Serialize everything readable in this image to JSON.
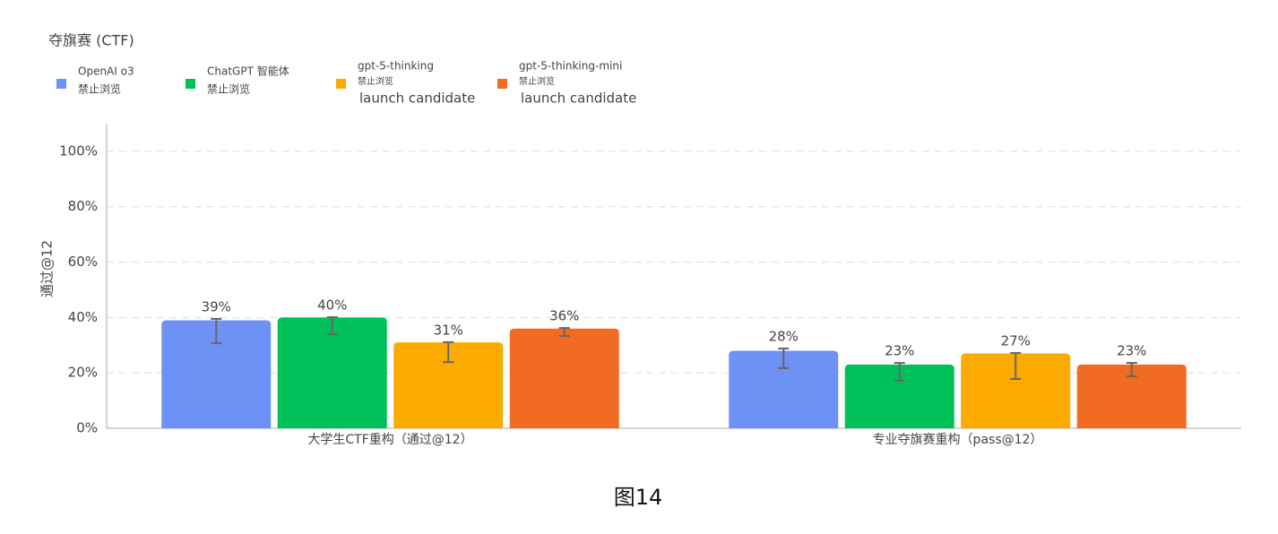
{
  "chart_data": {
    "type": "bar",
    "title": "夺旗赛 (CTF)",
    "caption": "图14",
    "y_label": "通过@12",
    "categories": [
      "大学生CTF重构（通过@12）",
      "专业夺旗赛重构（pass@12）"
    ],
    "series": [
      {
        "name": "OpenAI o3",
        "sublabels": [
          "禁止浏览"
        ],
        "color": "#6e91f5",
        "values": [
          39,
          28
        ],
        "value_labels": [
          "39%",
          "28%"
        ],
        "err_low": [
          30.7,
          21.7
        ],
        "err_high": [
          39.5,
          28.8
        ]
      },
      {
        "name": "ChatGPT 智能体",
        "sublabels": [
          "禁止浏览"
        ],
        "color": "#00c05a",
        "values": [
          40,
          23
        ],
        "value_labels": [
          "40%",
          "23%"
        ],
        "err_low": [
          34.0,
          17.2
        ],
        "err_high": [
          40.1,
          23.6
        ]
      },
      {
        "name": "gpt-5-thinking",
        "sublabels": [
          "禁止浏览",
          "launch candidate"
        ],
        "color": "#fbab00",
        "values": [
          31,
          27
        ],
        "value_labels": [
          "31%",
          "27%"
        ],
        "err_low": [
          23.9,
          17.8
        ],
        "err_high": [
          31.1,
          27.2
        ]
      },
      {
        "name": "gpt-5-thinking-mini",
        "sublabels": [
          "禁止浏览",
          "launch candidate"
        ],
        "color": "#f26b22",
        "values": [
          36,
          23
        ],
        "value_labels": [
          "36%",
          "23%"
        ],
        "err_low": [
          33.3,
          18.8
        ],
        "err_high": [
          36.2,
          23.6
        ]
      }
    ],
    "ylim": [
      0,
      110
    ],
    "yticks": [
      {
        "value": 0,
        "label": "0%"
      },
      {
        "value": 20,
        "label": "20%"
      },
      {
        "value": 40,
        "label": "40%"
      },
      {
        "value": 60,
        "label": "60%"
      },
      {
        "value": 80,
        "label": "80%"
      },
      {
        "value": 100,
        "label": "100%"
      }
    ],
    "grid": true
  }
}
